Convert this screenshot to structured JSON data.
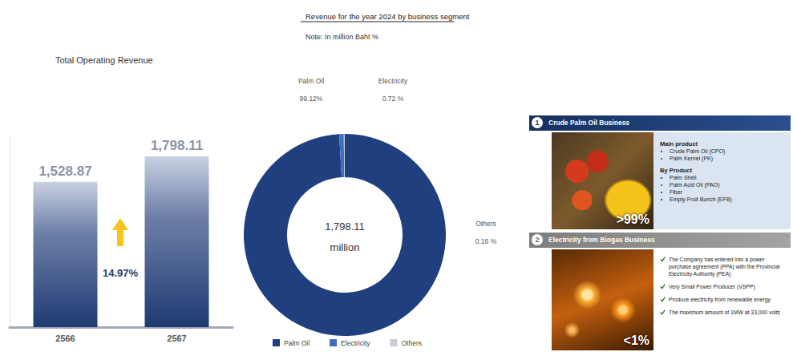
{
  "chart_data": [
    {
      "type": "bar",
      "title": "Total Operating Revenue",
      "categories": [
        "2566",
        "2567"
      ],
      "values": [
        1528.87,
        1798.11
      ],
      "value_labels": [
        "1,528.87",
        "1,798.11"
      ],
      "data_labels": true,
      "color": "#1f3a73",
      "ylim": [
        0,
        2000
      ],
      "tick_labels": "x",
      "grid": false,
      "annotation": "14.97%"
    },
    {
      "type": "pie",
      "title": "Revenue for the year 2024 by business segment",
      "subtitle": "Note: In million Baht %",
      "categories": [
        "Palm Oil",
        "Electricity",
        "Others"
      ],
      "values": [
        99.12,
        0.72,
        0.16
      ],
      "value_labels": [
        "99.12%",
        "0.72 %",
        "0.16 %"
      ],
      "data_labels": true,
      "colors": [
        "#1f3f7f",
        "#3d6ec0",
        "#c8ccd8"
      ],
      "legend": "bottom",
      "center_text": [
        "1,798.11",
        "million"
      ]
    }
  ],
  "panel": {
    "segments": [
      {
        "number": "1",
        "title": "Crude Palm Oil Business",
        "share": ">99%",
        "main_product_heading": "Main product",
        "main_products": [
          "Crude Palm Oil (CPO)",
          "Palm Kernel (PK)"
        ],
        "by_product_heading": "By Product",
        "by_products": [
          "Palm Shell",
          "Palm Acid Oil (PAO)",
          "Fiber",
          "Empty Fruit Bunch (EFB)"
        ]
      },
      {
        "number": "2",
        "title": "Electricity from Biogas Business",
        "share": "<1%",
        "points": [
          "The Company has entered into a power purchase agreement (PPA) with the Provincial Electricity Authority (PEA)",
          "Very Small Power Producer (VSPP)",
          "Produce electricity from renewable energy",
          "The maximum amount of 1MW at 33,000 volts"
        ]
      }
    ]
  }
}
